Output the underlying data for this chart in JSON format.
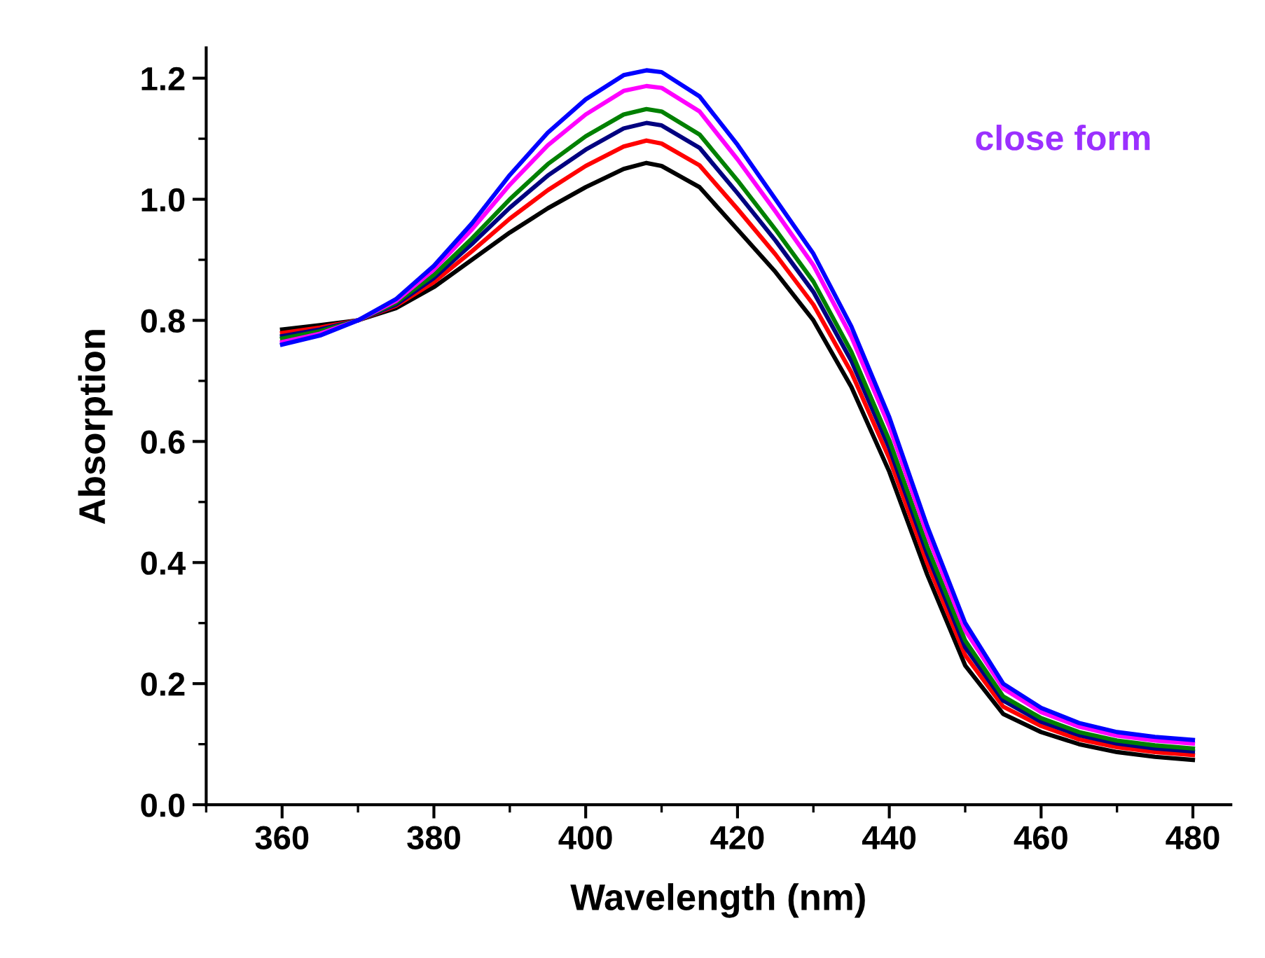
{
  "chart_data": {
    "type": "line",
    "xlabel": "Wavelength (nm)",
    "ylabel": "Absorption",
    "annotations": [
      "close form"
    ],
    "x": [
      360,
      365,
      370,
      375,
      380,
      385,
      390,
      395,
      400,
      405,
      408,
      410,
      415,
      420,
      425,
      430,
      435,
      440,
      445,
      450,
      455,
      460,
      465,
      470,
      475,
      480
    ],
    "series": [
      {
        "color": "#000000",
        "values": [
          0.785,
          0.792,
          0.8,
          0.82,
          0.855,
          0.9,
          0.945,
          0.985,
          1.02,
          1.05,
          1.06,
          1.055,
          1.02,
          0.95,
          0.88,
          0.8,
          0.69,
          0.55,
          0.38,
          0.23,
          0.15,
          0.12,
          0.1,
          0.087,
          0.079,
          0.074
        ]
      },
      {
        "color": "#ff0000",
        "values": [
          0.779,
          0.788,
          0.8,
          0.824,
          0.863,
          0.914,
          0.968,
          1.015,
          1.055,
          1.087,
          1.097,
          1.092,
          1.056,
          0.984,
          0.909,
          0.826,
          0.714,
          0.572,
          0.399,
          0.247,
          0.162,
          0.13,
          0.108,
          0.095,
          0.087,
          0.082
        ]
      },
      {
        "color": "#000080",
        "values": [
          0.774,
          0.785,
          0.8,
          0.826,
          0.87,
          0.926,
          0.986,
          1.039,
          1.082,
          1.117,
          1.126,
          1.122,
          1.085,
          1.01,
          0.932,
          0.847,
          0.733,
          0.589,
          0.414,
          0.26,
          0.172,
          0.137,
          0.115,
          0.101,
          0.093,
          0.088
        ]
      },
      {
        "color": "#008000",
        "values": [
          0.77,
          0.782,
          0.8,
          0.829,
          0.875,
          0.935,
          1.0,
          1.058,
          1.104,
          1.14,
          1.149,
          1.145,
          1.107,
          1.031,
          0.95,
          0.864,
          0.748,
          0.602,
          0.426,
          0.271,
          0.179,
          0.143,
          0.12,
          0.106,
          0.098,
          0.093
        ]
      },
      {
        "color": "#ff00ff",
        "values": [
          0.764,
          0.778,
          0.8,
          0.832,
          0.884,
          0.95,
          1.024,
          1.089,
          1.14,
          1.179,
          1.187,
          1.184,
          1.145,
          1.066,
          0.98,
          0.891,
          0.773,
          0.625,
          0.446,
          0.288,
          0.192,
          0.153,
          0.129,
          0.114,
          0.106,
          0.101
        ]
      },
      {
        "color": "#0000ff",
        "values": [
          0.76,
          0.775,
          0.8,
          0.835,
          0.89,
          0.96,
          1.04,
          1.11,
          1.165,
          1.205,
          1.213,
          1.21,
          1.17,
          1.09,
          1.0,
          0.91,
          0.79,
          0.64,
          0.46,
          0.3,
          0.2,
          0.16,
          0.135,
          0.12,
          0.112,
          0.107
        ]
      }
    ],
    "xlim": [
      350,
      485
    ],
    "ylim": [
      0,
      1.25
    ],
    "xticks": [
      360,
      380,
      400,
      420,
      440,
      460,
      480
    ],
    "yticks": [
      {
        "value": 0,
        "label": "0.0"
      },
      {
        "value": 0.2,
        "label": "0.2"
      },
      {
        "value": 0.4,
        "label": "0.4"
      },
      {
        "value": 0.6,
        "label": "0.6"
      },
      {
        "value": 0.8,
        "label": "0.8"
      },
      {
        "value": 1.0,
        "label": "1.0"
      },
      {
        "value": 1.2,
        "label": "1.2"
      }
    ],
    "grid": false,
    "marker": "none",
    "line_style": "solid"
  }
}
